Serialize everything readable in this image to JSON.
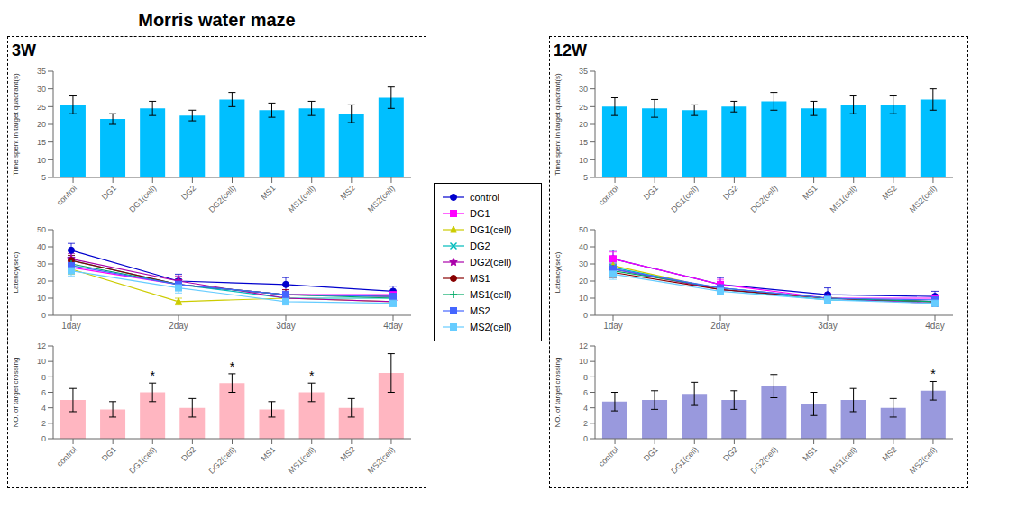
{
  "title": "Morris water maze",
  "chart_data": [
    {
      "type": "bar",
      "subtitle": "3W",
      "categories": [
        "control",
        "DG1",
        "DG1(cell)",
        "DG2",
        "DG2(cell)",
        "MS1",
        "MS1(cell)",
        "MS2",
        "MS2(cell)"
      ],
      "values": [
        25.5,
        21.5,
        24.5,
        22.5,
        27.0,
        24.0,
        24.5,
        23.0,
        27.5
      ],
      "errors": [
        2.5,
        1.5,
        2.0,
        1.5,
        2.0,
        2.0,
        2.0,
        2.5,
        3.0
      ],
      "color": "#00BFFF",
      "ylabel": "Time spent in target quadrant(s)",
      "ylim": [
        5,
        35
      ],
      "yticks": [
        5,
        10,
        15,
        20,
        25,
        30,
        35
      ]
    },
    {
      "type": "line",
      "categories": [
        "1day",
        "2day",
        "3day",
        "4day"
      ],
      "ylabel": "Latency(sec)",
      "ylim": [
        0,
        50
      ],
      "yticks": [
        0,
        10,
        20,
        30,
        40,
        50
      ],
      "legend": "right",
      "series": [
        {
          "name": "control",
          "color": "#0000CD",
          "marker": "circle",
          "values": [
            38,
            20,
            18,
            14
          ],
          "errors": [
            4,
            4,
            4,
            3
          ]
        },
        {
          "name": "DG1",
          "color": "#FF00FF",
          "marker": "square",
          "values": [
            28,
            18,
            12,
            12
          ],
          "errors": [
            3,
            3,
            3,
            2
          ]
        },
        {
          "name": "DG1(cell)",
          "color": "#CCCC00",
          "marker": "triangle",
          "values": [
            27,
            8,
            10,
            8
          ],
          "errors": [
            3,
            2,
            2,
            2
          ]
        },
        {
          "name": "DG2",
          "color": "#00BBBB",
          "marker": "x",
          "values": [
            32,
            18,
            10,
            10
          ],
          "errors": [
            3,
            3,
            2,
            2
          ]
        },
        {
          "name": "DG2(cell)",
          "color": "#AA00AA",
          "marker": "star",
          "values": [
            33,
            20,
            10,
            8
          ],
          "errors": [
            3,
            3,
            2,
            2
          ]
        },
        {
          "name": "MS1",
          "color": "#880000",
          "marker": "circle",
          "values": [
            32,
            18,
            12,
            11
          ],
          "errors": [
            3,
            3,
            3,
            2
          ]
        },
        {
          "name": "MS1(cell)",
          "color": "#00AA66",
          "marker": "plus",
          "values": [
            30,
            18,
            12,
            10
          ],
          "errors": [
            3,
            3,
            2,
            2
          ]
        },
        {
          "name": "MS2",
          "color": "#4466FF",
          "marker": "square",
          "values": [
            29,
            18,
            12,
            11
          ],
          "errors": [
            3,
            3,
            2,
            2
          ]
        },
        {
          "name": "MS2(cell)",
          "color": "#66CCFF",
          "marker": "square",
          "values": [
            26,
            16,
            8,
            7
          ],
          "errors": [
            3,
            3,
            2,
            2
          ]
        }
      ]
    },
    {
      "type": "bar",
      "categories": [
        "control",
        "DG1",
        "DG1(cell)",
        "DG2",
        "DG2(cell)",
        "MS1",
        "MS1(cell)",
        "MS2",
        "MS2(cell)"
      ],
      "values": [
        5.0,
        3.8,
        6.0,
        4.0,
        7.2,
        3.8,
        6.0,
        4.0,
        8.5
      ],
      "errors": [
        1.5,
        1.0,
        1.2,
        1.2,
        1.2,
        1.0,
        1.2,
        1.2,
        2.5
      ],
      "color": "#FFB6C1",
      "ylabel": "NO. of target crossing",
      "ylim": [
        0,
        12
      ],
      "yticks": [
        0,
        2,
        4,
        6,
        8,
        10,
        12
      ],
      "annotations": [
        {
          "category": "DG1(cell)",
          "text": "*"
        },
        {
          "category": "DG2(cell)",
          "text": "*"
        },
        {
          "category": "MS1(cell)",
          "text": "*"
        }
      ]
    },
    {
      "type": "bar",
      "subtitle": "12W",
      "categories": [
        "control",
        "DG1",
        "DG1(cell)",
        "DG2",
        "DG2(cell)",
        "MS1",
        "MS1(cell)",
        "MS2",
        "MS2(cell)"
      ],
      "values": [
        25.0,
        24.5,
        24.0,
        25.0,
        26.5,
        24.5,
        25.5,
        25.5,
        27.0
      ],
      "errors": [
        2.5,
        2.5,
        1.5,
        1.5,
        2.5,
        2.0,
        2.5,
        2.5,
        3.0
      ],
      "color": "#00BFFF",
      "ylabel": "Time spent in target quadrant(s)",
      "ylim": [
        5,
        35
      ],
      "yticks": [
        5,
        10,
        15,
        20,
        25,
        30,
        35
      ]
    },
    {
      "type": "line",
      "categories": [
        "1day",
        "2day",
        "3day",
        "4day"
      ],
      "ylabel": "Latency(sec)",
      "ylim": [
        0,
        50
      ],
      "yticks": [
        0,
        10,
        20,
        30,
        40,
        50
      ],
      "series": [
        {
          "name": "control",
          "color": "#0000CD",
          "marker": "circle",
          "values": [
            33,
            18,
            12,
            11
          ],
          "errors": [
            5,
            4,
            4,
            3
          ]
        },
        {
          "name": "DG1",
          "color": "#FF00FF",
          "marker": "square",
          "values": [
            33,
            18,
            10,
            10
          ],
          "errors": [
            4,
            3,
            3,
            2
          ]
        },
        {
          "name": "DG1(cell)",
          "color": "#CCCC00",
          "marker": "triangle",
          "values": [
            29,
            15,
            10,
            8
          ],
          "errors": [
            3,
            3,
            2,
            2
          ]
        },
        {
          "name": "DG2",
          "color": "#00BBBB",
          "marker": "x",
          "values": [
            28,
            15,
            9,
            8
          ],
          "errors": [
            3,
            3,
            2,
            2
          ]
        },
        {
          "name": "DG2(cell)",
          "color": "#AA00AA",
          "marker": "star",
          "values": [
            27,
            15,
            10,
            7
          ],
          "errors": [
            3,
            3,
            2,
            2
          ]
        },
        {
          "name": "MS1",
          "color": "#880000",
          "marker": "circle",
          "values": [
            25,
            15,
            10,
            8
          ],
          "errors": [
            3,
            3,
            2,
            2
          ]
        },
        {
          "name": "MS1(cell)",
          "color": "#00AA66",
          "marker": "plus",
          "values": [
            26,
            16,
            10,
            8
          ],
          "errors": [
            3,
            3,
            2,
            2
          ]
        },
        {
          "name": "MS2",
          "color": "#4466FF",
          "marker": "square",
          "values": [
            27,
            16,
            10,
            9
          ],
          "errors": [
            3,
            3,
            2,
            2
          ]
        },
        {
          "name": "MS2(cell)",
          "color": "#66CCFF",
          "marker": "square",
          "values": [
            24,
            14,
            9,
            7
          ],
          "errors": [
            3,
            2,
            2,
            2
          ]
        }
      ]
    },
    {
      "type": "bar",
      "categories": [
        "control",
        "DG1",
        "DG1(cell)",
        "DG2",
        "DG2(cell)",
        "MS1",
        "MS1(cell)",
        "MS2",
        "MS2(cell)"
      ],
      "values": [
        4.8,
        5.0,
        5.8,
        5.0,
        6.8,
        4.5,
        5.0,
        4.0,
        6.2
      ],
      "errors": [
        1.2,
        1.2,
        1.5,
        1.2,
        1.5,
        1.5,
        1.5,
        1.2,
        1.2
      ],
      "color": "#9999DD",
      "ylabel": "NO. of target crossing",
      "ylim": [
        0,
        12
      ],
      "yticks": [
        0,
        2,
        4,
        6,
        8,
        10,
        12
      ],
      "annotations": [
        {
          "category": "MS2(cell)",
          "text": "*"
        }
      ]
    }
  ]
}
